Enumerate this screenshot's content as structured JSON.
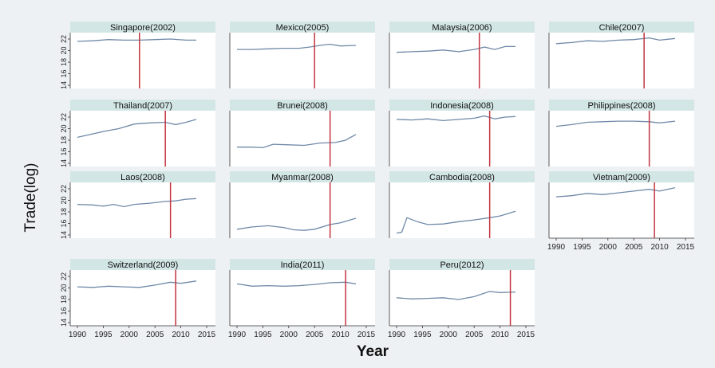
{
  "figure": {
    "ylabel": "Trade(log)",
    "xlabel": "Year"
  },
  "chart_data": {
    "type": "line",
    "layout": "small-multiples-grid",
    "columns": 4,
    "xlim": [
      1990,
      2015
    ],
    "ylim": [
      14,
      22
    ],
    "xticks": [
      1990,
      1995,
      2000,
      2005,
      2010,
      2015
    ],
    "yticks": [
      14,
      16,
      18,
      20,
      22
    ],
    "panel_bg": "#ffffff",
    "strip_bg": "#d3e6e6",
    "line_color": "#7089a8",
    "vline_color": "#c3343f",
    "panels": [
      {
        "title": "Singapore(2002)",
        "event_year": 2002,
        "x": [
          1990,
          1993,
          1996,
          1999,
          2002,
          2005,
          2008,
          2011,
          2013
        ],
        "y": [
          21.6,
          21.7,
          21.9,
          21.8,
          21.8,
          21.9,
          22.0,
          21.8,
          21.8
        ]
      },
      {
        "title": "Mexico(2005)",
        "event_year": 2005,
        "x": [
          1990,
          1993,
          1996,
          1999,
          2002,
          2004,
          2006,
          2008,
          2010,
          2013
        ],
        "y": [
          20.2,
          20.2,
          20.3,
          20.4,
          20.4,
          20.6,
          20.9,
          21.1,
          20.8,
          20.9
        ]
      },
      {
        "title": "Malaysia(2006)",
        "event_year": 2006,
        "x": [
          1990,
          1993,
          1996,
          1999,
          2002,
          2005,
          2007,
          2009,
          2011,
          2013
        ],
        "y": [
          19.7,
          19.8,
          19.9,
          20.1,
          19.8,
          20.2,
          20.6,
          20.2,
          20.7,
          20.7
        ]
      },
      {
        "title": "Chile(2007)",
        "event_year": 2007,
        "x": [
          1990,
          1993,
          1996,
          1999,
          2002,
          2005,
          2008,
          2010,
          2013
        ],
        "y": [
          21.2,
          21.4,
          21.7,
          21.6,
          21.8,
          21.9,
          22.2,
          21.8,
          22.1
        ]
      },
      {
        "title": "Thailand(2007)",
        "event_year": 2007,
        "x": [
          1990,
          1992,
          1995,
          1998,
          2001,
          2004,
          2007,
          2009,
          2011,
          2013
        ],
        "y": [
          18.5,
          18.9,
          19.5,
          20.0,
          20.8,
          21.0,
          21.1,
          20.7,
          21.1,
          21.6
        ]
      },
      {
        "title": "Brunei(2008)",
        "event_year": 2008,
        "x": [
          1990,
          1993,
          1995,
          1997,
          2000,
          2003,
          2006,
          2009,
          2011,
          2013
        ],
        "y": [
          16.8,
          16.8,
          16.7,
          17.3,
          17.2,
          17.1,
          17.5,
          17.6,
          18.0,
          19.0
        ]
      },
      {
        "title": "Indonesia(2008)",
        "event_year": 2008,
        "x": [
          1990,
          1993,
          1996,
          1999,
          2002,
          2005,
          2007,
          2009,
          2011,
          2013
        ],
        "y": [
          21.6,
          21.5,
          21.7,
          21.4,
          21.6,
          21.8,
          22.2,
          21.7,
          22.0,
          22.1
        ]
      },
      {
        "title": "Philippines(2008)",
        "event_year": 2008,
        "x": [
          1990,
          1993,
          1996,
          1999,
          2002,
          2005,
          2008,
          2010,
          2013
        ],
        "y": [
          20.4,
          20.7,
          21.1,
          21.2,
          21.3,
          21.3,
          21.2,
          21.0,
          21.3
        ]
      },
      {
        "title": "Laos(2008)",
        "event_year": 2008,
        "x": [
          1990,
          1993,
          1995,
          1997,
          1999,
          2001,
          2004,
          2007,
          2009,
          2011,
          2013
        ],
        "y": [
          19.3,
          19.2,
          19.0,
          19.3,
          18.9,
          19.3,
          19.5,
          19.8,
          19.9,
          20.2,
          20.3
        ]
      },
      {
        "title": "Myanmar(2008)",
        "event_year": 2008,
        "x": [
          1990,
          1993,
          1996,
          1999,
          2001,
          2003,
          2005,
          2008,
          2010,
          2013
        ],
        "y": [
          15.0,
          15.4,
          15.6,
          15.3,
          14.9,
          14.8,
          15.0,
          15.8,
          16.1,
          16.9
        ]
      },
      {
        "title": "Cambodia(2008)",
        "event_year": 2008,
        "x": [
          1990,
          1991,
          1992,
          1994,
          1996,
          1999,
          2002,
          2005,
          2008,
          2010,
          2013
        ],
        "y": [
          14.3,
          14.5,
          17.0,
          16.3,
          15.8,
          15.9,
          16.3,
          16.6,
          17.0,
          17.3,
          18.1
        ]
      },
      {
        "title": "Vietnam(2009)",
        "event_year": 2009,
        "x": [
          1990,
          1993,
          1996,
          1999,
          2002,
          2005,
          2008,
          2010,
          2013
        ],
        "y": [
          20.6,
          20.8,
          21.2,
          21.0,
          21.3,
          21.6,
          21.9,
          21.6,
          22.2
        ]
      },
      {
        "title": "Switzerland(2009)",
        "event_year": 2009,
        "x": [
          1990,
          1993,
          1996,
          1999,
          2002,
          2005,
          2008,
          2010,
          2013
        ],
        "y": [
          20.2,
          20.1,
          20.3,
          20.2,
          20.1,
          20.5,
          21.0,
          20.8,
          21.2
        ]
      },
      {
        "title": "India(2011)",
        "event_year": 2011,
        "x": [
          1990,
          1993,
          1996,
          1999,
          2002,
          2005,
          2008,
          2011,
          2013
        ],
        "y": [
          20.7,
          20.3,
          20.4,
          20.3,
          20.4,
          20.6,
          20.9,
          21.0,
          20.7
        ]
      },
      {
        "title": "Peru(2012)",
        "event_year": 2012,
        "x": [
          1990,
          1993,
          1996,
          1999,
          2002,
          2005,
          2008,
          2010,
          2013
        ],
        "y": [
          18.3,
          18.1,
          18.2,
          18.3,
          18.0,
          18.5,
          19.4,
          19.2,
          19.3
        ]
      }
    ]
  }
}
